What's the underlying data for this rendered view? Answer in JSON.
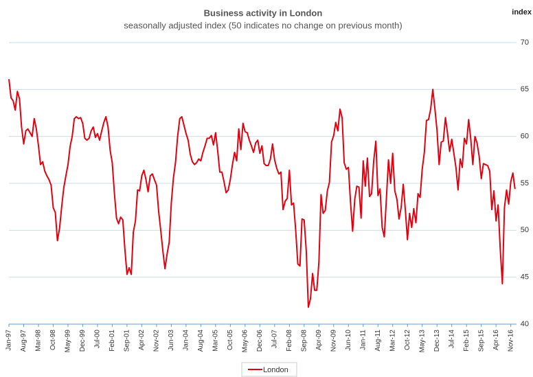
{
  "chart_data": {
    "type": "line",
    "title": "Business activity in London",
    "subtitle": "seasonally adjusted index (50 indicates no change on previous month)",
    "y_axis_label": "index",
    "categories": [
      "Jan-97",
      null,
      null,
      null,
      null,
      null,
      null,
      "Aug-97",
      null,
      null,
      null,
      null,
      null,
      null,
      "Mar-98",
      null,
      null,
      null,
      null,
      null,
      null,
      "Oct-98",
      null,
      null,
      null,
      null,
      null,
      null,
      "May-99",
      null,
      null,
      null,
      null,
      null,
      null,
      "Dec-99",
      null,
      null,
      null,
      null,
      null,
      null,
      "Jul-00",
      null,
      null,
      null,
      null,
      null,
      null,
      "Feb-01",
      null,
      null,
      null,
      null,
      null,
      null,
      "Sep-01",
      null,
      null,
      null,
      null,
      null,
      null,
      "Apr-02",
      null,
      null,
      null,
      null,
      null,
      null,
      "Nov-02",
      null,
      null,
      null,
      null,
      null,
      null,
      "Jun-03",
      null,
      null,
      null,
      null,
      null,
      null,
      "Jan-04",
      null,
      null,
      null,
      null,
      null,
      null,
      "Aug-04",
      null,
      null,
      null,
      null,
      null,
      null,
      "Mar-05",
      null,
      null,
      null,
      null,
      null,
      null,
      "Oct-05",
      null,
      null,
      null,
      null,
      null,
      null,
      "May-06",
      null,
      null,
      null,
      null,
      null,
      null,
      "Dec-06",
      null,
      null,
      null,
      null,
      null,
      null,
      "Jul-07",
      null,
      null,
      null,
      null,
      null,
      null,
      "Feb-08",
      null,
      null,
      null,
      null,
      null,
      null,
      "Sep-08",
      null,
      null,
      null,
      null,
      null,
      null,
      "Apr-09",
      null,
      null,
      null,
      null,
      null,
      null,
      "Nov-09",
      null,
      null,
      null,
      null,
      null,
      null,
      "Jun-10",
      null,
      null,
      null,
      null,
      null,
      null,
      "Jan-11",
      null,
      null,
      null,
      null,
      null,
      null,
      "Aug-11",
      null,
      null,
      null,
      null,
      null,
      null,
      "Mar-12",
      null,
      null,
      null,
      null,
      null,
      null,
      "Oct-12",
      null,
      null,
      null,
      null,
      null,
      null,
      "May-13",
      null,
      null,
      null,
      null,
      null,
      null,
      "Dec-13",
      null,
      null,
      null,
      null,
      null,
      null,
      "Jul-14",
      null,
      null,
      null,
      null,
      null,
      null,
      "Feb-15",
      null,
      null,
      null,
      null,
      null,
      null,
      "Sep-15",
      null,
      null,
      null,
      null,
      null,
      null,
      "Apr-16",
      null,
      null,
      null,
      null,
      null,
      null,
      "Nov-16",
      null,
      null
    ],
    "series": [
      {
        "name": "London",
        "color": "#e3000f",
        "values": [
          66.1,
          64.1,
          63.8,
          62.8,
          64.8,
          64.0,
          61.0,
          59.2,
          60.6,
          60.8,
          60.4,
          60.0,
          61.9,
          60.8,
          59.0,
          57.0,
          57.3,
          56.3,
          55.8,
          55.4,
          54.8,
          52.4,
          51.9,
          48.9,
          50.2,
          52.5,
          54.5,
          55.8,
          57.0,
          58.9,
          60.0,
          61.9,
          62.1,
          61.9,
          62.0,
          61.4,
          59.8,
          59.6,
          59.8,
          60.6,
          61.0,
          59.9,
          60.3,
          59.6,
          60.6,
          61.5,
          62.1,
          61.0,
          58.5,
          57.2,
          54.0,
          51.3,
          50.7,
          51.4,
          51.1,
          48.0,
          45.3,
          46.0,
          45.3,
          49.8,
          51.0,
          54.3,
          54.2,
          55.8,
          56.4,
          55.4,
          54.1,
          55.8,
          56.0,
          55.4,
          54.8,
          52.0,
          50.0,
          47.8,
          45.9,
          47.5,
          48.7,
          52.9,
          55.6,
          57.2,
          60.0,
          61.9,
          62.1,
          61.2,
          60.3,
          59.6,
          58.1,
          57.3,
          57.0,
          57.2,
          57.6,
          57.4,
          58.3,
          59.0,
          59.8,
          59.8,
          60.1,
          59.1,
          60.4,
          58.5,
          56.2,
          56.2,
          55.2,
          54.0,
          54.3,
          55.4,
          57.0,
          58.3,
          57.4,
          60.8,
          58.6,
          61.4,
          60.5,
          60.4,
          59.6,
          59.0,
          58.3,
          59.3,
          59.6,
          58.2,
          59.0,
          57.1,
          56.9,
          56.9,
          57.6,
          59.2,
          57.5,
          56.6,
          56.0,
          56.2,
          52.2,
          53.1,
          53.4,
          56.4,
          52.7,
          52.9,
          50.0,
          46.4,
          46.2,
          51.2,
          51.1,
          47.8,
          41.8,
          42.7,
          45.4,
          43.6,
          43.6,
          46.6,
          53.8,
          51.8,
          52.1,
          54.2,
          55.1,
          59.4,
          60.1,
          61.5,
          60.6,
          62.9,
          62.0,
          57.2,
          56.5,
          56.7,
          53.0,
          49.9,
          53.3,
          54.7,
          54.6,
          51.3,
          57.4,
          54.7,
          57.7,
          53.6,
          53.9,
          57.4,
          59.5,
          53.7,
          54.4,
          50.3,
          49.3,
          53.3,
          57.5,
          55.0,
          58.2,
          54.2,
          53.3,
          51.2,
          52.4,
          54.9,
          52.1,
          49.0,
          51.8,
          50.3,
          52.3,
          50.8,
          53.9,
          53.5,
          56.5,
          58.3,
          61.7,
          61.8,
          62.9,
          65.0,
          63.0,
          60.7,
          57.0,
          59.4,
          59.5,
          62.0,
          60.3,
          58.4,
          59.7,
          58.2,
          56.7,
          54.3,
          57.6,
          56.7,
          59.8,
          59.2,
          61.8,
          59.8,
          57.0,
          60.0,
          59.3,
          57.9,
          55.5,
          57.1,
          57.0,
          56.9,
          56.3,
          52.2,
          54.2,
          51.0,
          52.7,
          48.0,
          44.3,
          52.4,
          54.3,
          52.8,
          55.2,
          56.1,
          54.4
        ]
      }
    ],
    "ylim": [
      40,
      70
    ],
    "yticks": [
      40,
      45,
      50,
      55,
      60,
      65,
      70
    ],
    "grid": true,
    "legend": "bottom"
  }
}
